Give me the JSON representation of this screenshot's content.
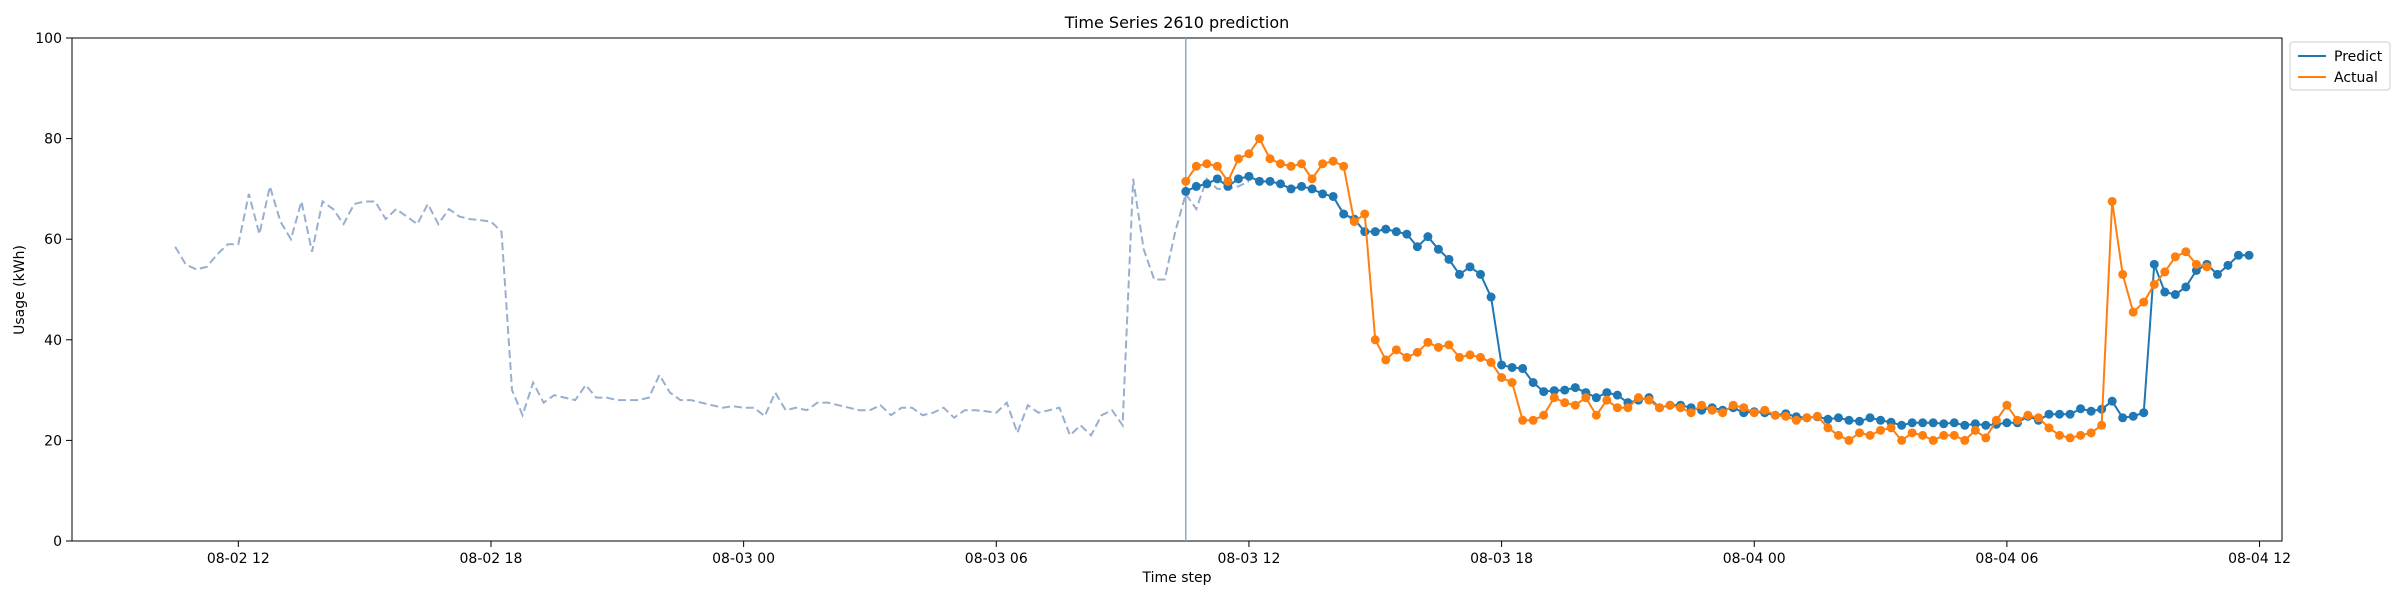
{
  "chart_data": {
    "type": "line",
    "title": "Time Series 2610 prediction",
    "xlabel": "Time step",
    "ylabel": "Usage (kWh)",
    "ylim": [
      0,
      100
    ],
    "xlim": [
      "2024-08-02 08:03",
      "2024-08-04 12:32"
    ],
    "x_ticks": [
      {
        "label": "08-02 12",
        "t": "2024-08-02 12:00"
      },
      {
        "label": "08-02 18",
        "t": "2024-08-02 18:00"
      },
      {
        "label": "08-03 00",
        "t": "2024-08-03 00:00"
      },
      {
        "label": "08-03 06",
        "t": "2024-08-03 06:00"
      },
      {
        "label": "08-03 12",
        "t": "2024-08-03 12:00"
      },
      {
        "label": "08-03 18",
        "t": "2024-08-03 18:00"
      },
      {
        "label": "08-04 00",
        "t": "2024-08-04 00:00"
      },
      {
        "label": "08-04 06",
        "t": "2024-08-04 06:00"
      },
      {
        "label": "08-04 12",
        "t": "2024-08-04 12:00"
      }
    ],
    "y_ticks": [
      0,
      20,
      40,
      60,
      80,
      100
    ],
    "grid": false,
    "legend_position": "outside-top-right",
    "forecast_start": "2024-08-03 10:30",
    "history": {
      "start": "2024-08-02 10:30",
      "step_minutes": 15,
      "color": "#98afd0",
      "style": "dashed",
      "values": [
        58.5,
        55,
        54,
        54.5,
        57,
        59,
        59,
        69,
        61,
        70.5,
        63.5,
        60,
        67.5,
        57.5,
        67.5,
        66,
        63,
        67,
        67.5,
        67.5,
        64,
        66,
        64.5,
        63,
        67,
        63,
        66,
        64.5,
        64,
        63.8,
        63.5,
        61.5,
        30,
        25,
        31.5,
        27.5,
        29,
        28.5,
        28,
        31,
        28.5,
        28.5,
        28,
        28,
        28,
        28.5,
        33,
        29.5,
        28,
        28,
        27.5,
        27,
        26.5,
        26.8,
        26.5,
        26.5,
        24.8,
        29.5,
        26,
        26.5,
        26,
        27.5,
        27.5,
        27,
        26.5,
        26,
        26,
        27,
        25,
        26.5,
        26.5,
        25,
        25.5,
        26.5,
        24.5,
        26,
        26,
        25.8,
        25.5,
        27.5,
        21.5,
        27,
        25.5,
        26,
        26.5,
        21,
        23,
        21,
        25,
        26,
        23,
        72,
        58,
        52,
        52,
        61.5,
        69,
        66,
        72,
        70,
        70,
        70.5,
        71.5
      ]
    },
    "forecast": {
      "start": "2024-08-03 10:30",
      "step_minutes": 15,
      "series": [
        {
          "name": "Predict",
          "color": "#1f77b4",
          "values": [
            69.5,
            70.5,
            71,
            72,
            70.5,
            72,
            72.5,
            71.5,
            71.5,
            71,
            70,
            70.5,
            70,
            69,
            68.5,
            65,
            64,
            61.5,
            61.5,
            62,
            61.5,
            61,
            58.5,
            60.5,
            58,
            56,
            53,
            54.5,
            53,
            48.5,
            35,
            34.5,
            34.3,
            31.5,
            29.7,
            29.9,
            30,
            30.5,
            29.5,
            28.5,
            29.5,
            29,
            27.5,
            28,
            28.5,
            26.5,
            27,
            27,
            26.5,
            26,
            26.5,
            26,
            26.5,
            25.5,
            25.7,
            25.5,
            25,
            25.3,
            24.7,
            24.5,
            24.7,
            24.2,
            24.5,
            24,
            23.8,
            24.5,
            24,
            23.6,
            23,
            23.5,
            23.5,
            23.5,
            23.3,
            23.5,
            23,
            23.3,
            23,
            23.2,
            23.5,
            23.5,
            24.8,
            24,
            25.2,
            25.2,
            25.2,
            26.3,
            25.8,
            26.2,
            27.8,
            24.5,
            24.8,
            25.5,
            55,
            49.5,
            49,
            50.5,
            53.8,
            55,
            53,
            54.8,
            56.8,
            56.8
          ]
        },
        {
          "name": "Actual",
          "color": "#ff7f0e",
          "values": [
            71.5,
            74.5,
            75,
            74.5,
            71.5,
            76,
            77,
            80,
            76,
            75,
            74.5,
            75,
            72,
            75,
            75.5,
            74.5,
            63.5,
            65,
            40,
            36,
            38,
            36.5,
            37.5,
            39.5,
            38.5,
            39,
            36.5,
            37,
            36.5,
            35.5,
            32.5,
            31.5,
            24,
            24,
            25,
            28.5,
            27.5,
            27,
            28.5,
            25,
            28,
            26.5,
            26.5,
            28.5,
            28,
            26.5,
            27,
            26.5,
            25.5,
            27,
            26,
            25.5,
            27,
            26.5,
            25.5,
            26,
            25,
            24.8,
            24,
            24.5,
            24.8,
            22.5,
            21,
            20,
            21.5,
            21,
            22,
            22.5,
            20,
            21.5,
            21,
            20,
            21,
            21,
            20,
            22,
            20.5,
            24,
            27,
            24,
            25,
            24.5,
            22.5,
            21,
            20.5,
            21,
            21.5,
            23,
            67.5,
            53,
            45.5,
            47.5,
            51,
            53.5,
            56.5,
            57.5,
            55,
            54.5
          ]
        }
      ]
    }
  }
}
